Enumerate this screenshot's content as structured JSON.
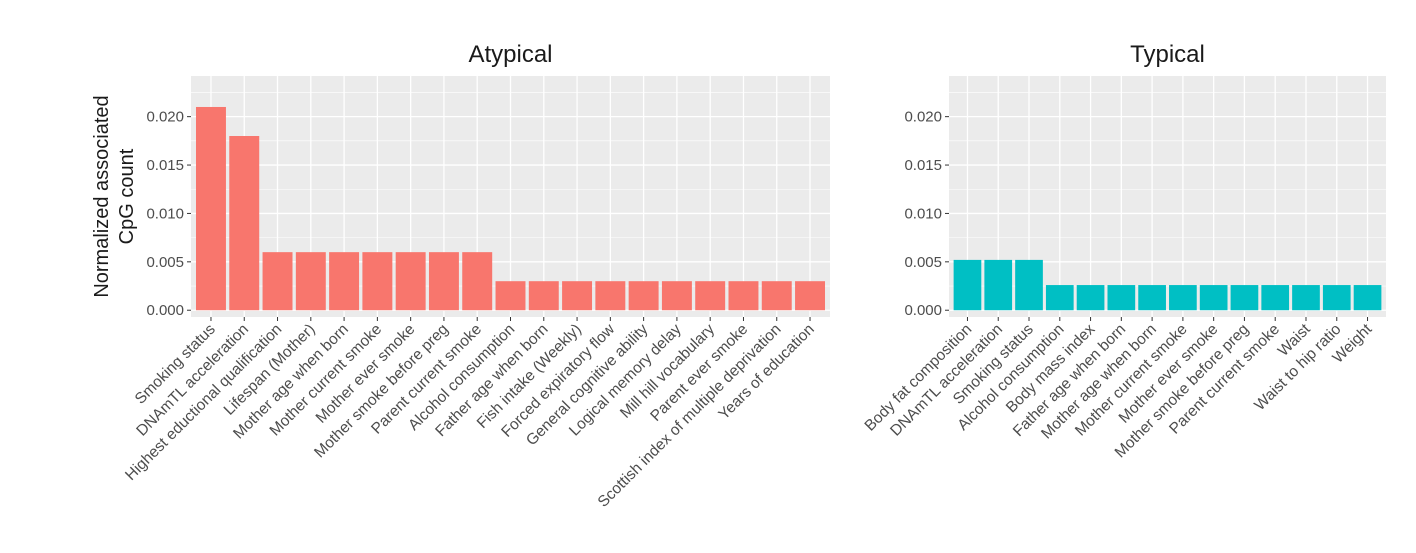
{
  "chart_data": [
    {
      "type": "bar",
      "title": "Atypical",
      "ylabel": [
        "Normalized associated",
        "CpG count"
      ],
      "xlabel": "",
      "ylim": [
        -0.0007,
        0.0242
      ],
      "yticks": [
        0,
        0.005,
        0.01,
        0.015,
        0.02
      ],
      "ytick_labels": [
        "0.000",
        "0.005",
        "0.010",
        "0.015",
        "0.020"
      ],
      "grid": true,
      "bar_color": "#F8766D",
      "categories": [
        "Smoking status",
        "DNAmTL acceleration",
        "Highest eductional qualification",
        "Lifespan (Mother)",
        "Mother age when born",
        "Mother current smoke",
        "Mother ever smoke",
        "Mother smoke before preg",
        "Parent current smoke",
        "Alcohol consumption",
        "Father age when born",
        "Fish intake (Weekly)",
        "Forced expiratory flow",
        "General cognitive ability",
        "Logical memory delay",
        "Mill hill vocabulary",
        "Parent ever smoke",
        "Scottish index of multiple deprivation",
        "Years of education"
      ],
      "values": [
        0.021,
        0.018,
        0.006,
        0.006,
        0.006,
        0.006,
        0.006,
        0.006,
        0.006,
        0.003,
        0.003,
        0.003,
        0.003,
        0.003,
        0.003,
        0.003,
        0.003,
        0.003,
        0.003
      ]
    },
    {
      "type": "bar",
      "title": "Typical",
      "ylabel": [],
      "xlabel": "",
      "ylim": [
        -0.0007,
        0.0242
      ],
      "yticks": [
        0,
        0.005,
        0.01,
        0.015,
        0.02
      ],
      "ytick_labels": [
        "0.000",
        "0.005",
        "0.010",
        "0.015",
        "0.020"
      ],
      "grid": true,
      "bar_color": "#00BFC4",
      "categories": [
        "Body fat composition",
        "DNAmTL acceleration",
        "Smoking status",
        "Alcohol consumption",
        "Body mass index",
        "Father age when born",
        "Mother age when born",
        "Mother current smoke",
        "Mother ever smoke",
        "Mother smoke before preg",
        "Parent current smoke",
        "Waist",
        "Waist to hip ratio",
        "Weight"
      ],
      "values": [
        0.0052,
        0.0052,
        0.0052,
        0.0026,
        0.0026,
        0.0026,
        0.0026,
        0.0026,
        0.0026,
        0.0026,
        0.0026,
        0.0026,
        0.0026,
        0.0026
      ]
    }
  ]
}
